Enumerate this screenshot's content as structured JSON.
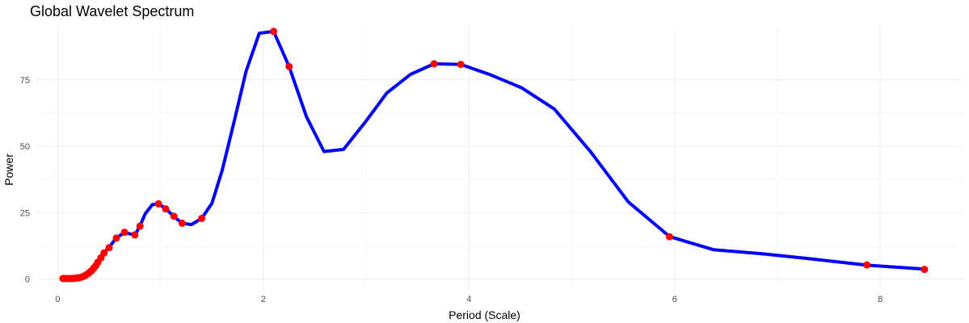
{
  "chart_data": {
    "type": "line",
    "title": "Global Wavelet Spectrum",
    "xlabel": "Period (Scale)",
    "ylabel": "Power",
    "xlim": [
      -0.2,
      8.8
    ],
    "ylim": [
      -3.8,
      95.3
    ],
    "x_ticks": [
      0,
      2,
      4,
      6,
      8
    ],
    "y_ticks": [
      0,
      25,
      50,
      75
    ],
    "grid": true,
    "line_color": "#0000ff",
    "point_color": "#ff0000",
    "series": [
      {
        "values": [
          {
            "x": 0.05,
            "y": 0.2
          },
          {
            "x": 0.12,
            "y": 0.2
          },
          {
            "x": 0.18,
            "y": 0.3
          },
          {
            "x": 0.22,
            "y": 0.5
          },
          {
            "x": 0.26,
            "y": 1.0
          },
          {
            "x": 0.3,
            "y": 2.0
          },
          {
            "x": 0.34,
            "y": 3.5
          },
          {
            "x": 0.38,
            "y": 6.0
          },
          {
            "x": 0.42,
            "y": 8.5
          },
          {
            "x": 0.5,
            "y": 12.0
          },
          {
            "x": 0.57,
            "y": 15.5
          },
          {
            "x": 0.65,
            "y": 17.5
          },
          {
            "x": 0.75,
            "y": 16.5
          },
          {
            "x": 0.8,
            "y": 20.0
          },
          {
            "x": 0.85,
            "y": 24.5
          },
          {
            "x": 0.92,
            "y": 28.0
          },
          {
            "x": 0.98,
            "y": 28.3
          },
          {
            "x": 1.05,
            "y": 26.5
          },
          {
            "x": 1.13,
            "y": 23.5
          },
          {
            "x": 1.21,
            "y": 21.0
          },
          {
            "x": 1.3,
            "y": 20.5
          },
          {
            "x": 1.4,
            "y": 22.8
          },
          {
            "x": 1.5,
            "y": 28.5
          },
          {
            "x": 1.6,
            "y": 41.0
          },
          {
            "x": 1.72,
            "y": 60.0
          },
          {
            "x": 1.83,
            "y": 78.0
          },
          {
            "x": 1.96,
            "y": 92.5
          },
          {
            "x": 2.1,
            "y": 93.2
          },
          {
            "x": 2.25,
            "y": 80.0
          },
          {
            "x": 2.42,
            "y": 61.0
          },
          {
            "x": 2.59,
            "y": 48.0
          },
          {
            "x": 2.78,
            "y": 48.8
          },
          {
            "x": 2.99,
            "y": 59.0
          },
          {
            "x": 3.2,
            "y": 70.0
          },
          {
            "x": 3.43,
            "y": 77.0
          },
          {
            "x": 3.66,
            "y": 81.0
          },
          {
            "x": 3.92,
            "y": 80.8
          },
          {
            "x": 4.2,
            "y": 77.0
          },
          {
            "x": 4.51,
            "y": 72.0
          },
          {
            "x": 4.83,
            "y": 64.0
          },
          {
            "x": 5.18,
            "y": 48.0
          },
          {
            "x": 5.55,
            "y": 29.0
          },
          {
            "x": 5.95,
            "y": 16.0
          },
          {
            "x": 6.38,
            "y": 11.0
          },
          {
            "x": 6.85,
            "y": 9.5
          },
          {
            "x": 7.34,
            "y": 7.5
          },
          {
            "x": 7.87,
            "y": 5.2
          },
          {
            "x": 8.43,
            "y": 3.7
          }
        ],
        "markers": [
          {
            "x": 0.05,
            "y": 0.2
          },
          {
            "x": 0.07,
            "y": 0.2
          },
          {
            "x": 0.09,
            "y": 0.2
          },
          {
            "x": 0.11,
            "y": 0.2
          },
          {
            "x": 0.13,
            "y": 0.2
          },
          {
            "x": 0.15,
            "y": 0.2
          },
          {
            "x": 0.17,
            "y": 0.3
          },
          {
            "x": 0.19,
            "y": 0.4
          },
          {
            "x": 0.21,
            "y": 0.5
          },
          {
            "x": 0.23,
            "y": 0.7
          },
          {
            "x": 0.25,
            "y": 1.0
          },
          {
            "x": 0.27,
            "y": 1.4
          },
          {
            "x": 0.29,
            "y": 1.9
          },
          {
            "x": 0.31,
            "y": 2.5
          },
          {
            "x": 0.33,
            "y": 3.2
          },
          {
            "x": 0.35,
            "y": 4.1
          },
          {
            "x": 0.37,
            "y": 5.0
          },
          {
            "x": 0.39,
            "y": 6.3
          },
          {
            "x": 0.42,
            "y": 8.0
          },
          {
            "x": 0.45,
            "y": 9.8
          },
          {
            "x": 0.5,
            "y": 11.8
          },
          {
            "x": 0.57,
            "y": 15.4
          },
          {
            "x": 0.65,
            "y": 17.6
          },
          {
            "x": 0.75,
            "y": 16.6
          },
          {
            "x": 0.8,
            "y": 19.9
          },
          {
            "x": 0.98,
            "y": 28.3
          },
          {
            "x": 1.05,
            "y": 26.4
          },
          {
            "x": 1.13,
            "y": 23.6
          },
          {
            "x": 1.21,
            "y": 21.0
          },
          {
            "x": 1.4,
            "y": 22.8
          },
          {
            "x": 2.1,
            "y": 93.2
          },
          {
            "x": 2.25,
            "y": 80.0
          },
          {
            "x": 3.66,
            "y": 81.0
          },
          {
            "x": 3.92,
            "y": 80.8
          },
          {
            "x": 5.95,
            "y": 15.9
          },
          {
            "x": 7.87,
            "y": 5.3
          },
          {
            "x": 8.43,
            "y": 3.6
          }
        ]
      }
    ]
  }
}
